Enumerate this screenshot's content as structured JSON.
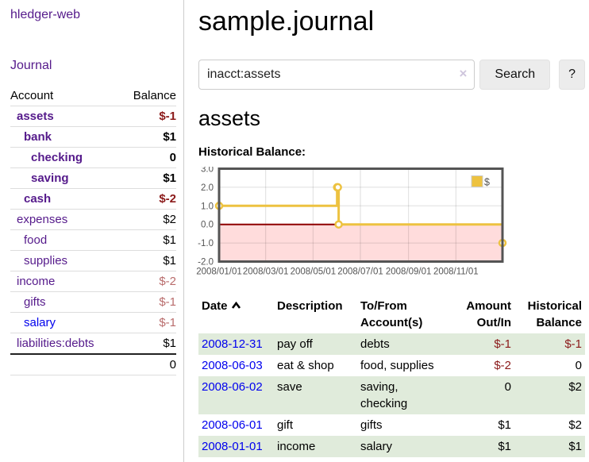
{
  "sidebar": {
    "brand": "hledger-web",
    "nav": {
      "journal": "Journal"
    },
    "accounts_table": {
      "headers": {
        "account": "Account",
        "balance": "Balance"
      },
      "rows": [
        {
          "name": "assets",
          "balance": "$-1",
          "depth": 0,
          "bold": true
        },
        {
          "name": "bank",
          "balance": "$1",
          "depth": 1,
          "bold": true
        },
        {
          "name": "checking",
          "balance": "0",
          "depth": 2,
          "bold": true
        },
        {
          "name": "saving",
          "balance": "$1",
          "depth": 2,
          "bold": true
        },
        {
          "name": "cash",
          "balance": "$-2",
          "depth": 1,
          "bold": true
        },
        {
          "name": "expenses",
          "balance": "$2",
          "depth": 0,
          "bold": false
        },
        {
          "name": "food",
          "balance": "$1",
          "depth": 1,
          "bold": false
        },
        {
          "name": "supplies",
          "balance": "$1",
          "depth": 1,
          "bold": false
        },
        {
          "name": "income",
          "balance": "$-2",
          "depth": 0,
          "bold": false
        },
        {
          "name": "gifts",
          "balance": "$-1",
          "depth": 1,
          "bold": false
        },
        {
          "name": "salary",
          "balance": "$-1",
          "depth": 1,
          "bold": false
        },
        {
          "name": "liabilities:debts",
          "balance": "$1",
          "depth": 0,
          "bold": false
        }
      ],
      "total": "0"
    }
  },
  "header": {
    "title": "sample.journal"
  },
  "search": {
    "value": "inacct:assets",
    "clear_icon": "×",
    "button_label": "Search",
    "help_label": "?"
  },
  "account_page": {
    "heading": "assets",
    "chart_label": "Historical Balance:",
    "sort_icon": "chevron-up"
  },
  "chart_data": {
    "type": "line",
    "title": "Historical Balance",
    "steps": true,
    "series": [
      {
        "name": "$",
        "color": "#edc240",
        "points": [
          {
            "date": "2008-01-01",
            "value": 1
          },
          {
            "date": "2008-06-01",
            "value": 2
          },
          {
            "date": "2008-06-02",
            "value": 2
          },
          {
            "date": "2008-06-03",
            "value": 0
          },
          {
            "date": "2008-12-31",
            "value": -1
          }
        ]
      }
    ],
    "x_ticks": [
      "2008/01/01",
      "2008/03/01",
      "2008/05/01",
      "2008/07/01",
      "2008/09/01",
      "2008/11/01"
    ],
    "x_range": [
      "2008-01-01",
      "2008-12-31"
    ],
    "y_ticks": [
      3.0,
      2.0,
      1.0,
      0.0,
      -1.0,
      -2.0
    ],
    "y_range": [
      -2,
      3
    ],
    "grid": true,
    "legend_position": "top-right",
    "below_zero_fill": "#ffdcdc",
    "zero_line_color": "#8e0000",
    "frame_color": "#545454",
    "tick_text_color": "#545454"
  },
  "register": {
    "headers": {
      "date": "Date",
      "description": "Description",
      "account": "To/From Account(s)",
      "amount": "Amount Out/In",
      "balance": "Historical Balance"
    },
    "rows": [
      {
        "date": "2008-12-31",
        "description": "pay off",
        "account": "debts",
        "amount": "$-1",
        "balance": "$-1"
      },
      {
        "date": "2008-06-03",
        "description": "eat & shop",
        "account": "food, supplies",
        "amount": "$-2",
        "balance": "0"
      },
      {
        "date": "2008-06-02",
        "description": "save",
        "account": "saving, checking",
        "amount": "0",
        "balance": "$2"
      },
      {
        "date": "2008-06-01",
        "description": "gift",
        "account": "gifts",
        "amount": "$1",
        "balance": "$2"
      },
      {
        "date": "2008-01-01",
        "description": "income",
        "account": "salary",
        "amount": "$1",
        "balance": "$1"
      }
    ]
  },
  "colors": {
    "link_purple": "#551a8b",
    "link_blue": "#0000ee",
    "negative_dark": "#8b1a1a",
    "negative_muted": "#b96c6c",
    "row_green": "#e0ebdb",
    "chart_line": "#edc240",
    "chart_below_zero": "#ffdcdc",
    "chart_zero_line": "#8e0000",
    "chart_frame": "#545454"
  }
}
